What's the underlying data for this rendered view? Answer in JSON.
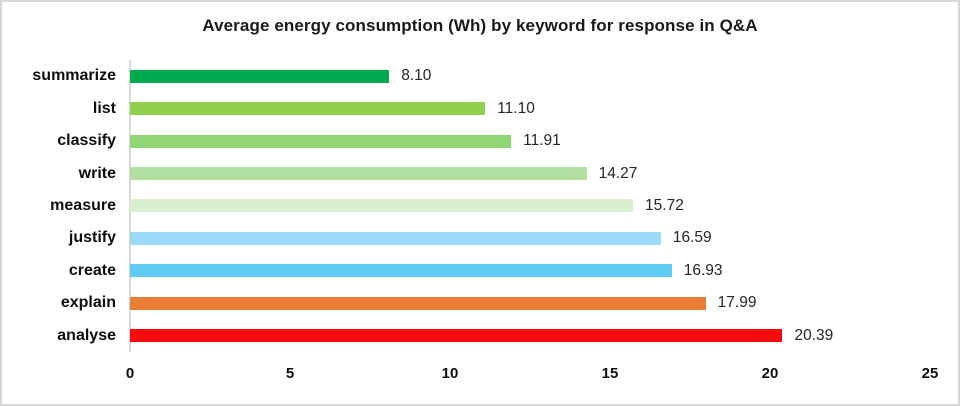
{
  "title": "Average energy consumption (Wh) by keyword for response in Q&A",
  "colors": {
    "frame_border": "#D6D6D6",
    "axis_line": "#D9D9D9",
    "title_text": "#1A1A1A",
    "category_text": "#0D0D0D",
    "value_text": "#262626"
  },
  "chart_data": {
    "type": "bar",
    "orientation": "horizontal",
    "title": "Average energy consumption (Wh) by keyword for response in Q&A",
    "categories": [
      "summarize",
      "list",
      "classify",
      "write",
      "measure",
      "justify",
      "create",
      "explain",
      "analyse"
    ],
    "values": [
      8.1,
      11.1,
      11.91,
      14.27,
      15.72,
      16.59,
      16.93,
      17.99,
      20.39
    ],
    "value_labels": [
      "8.10",
      "11.10",
      "11.91",
      "14.27",
      "15.72",
      "16.59",
      "16.93",
      "17.99",
      "20.39"
    ],
    "bar_colors": [
      "#00AB4F",
      "#8FD04F",
      "#90D675",
      "#B2E0A0",
      "#D9F0CE",
      "#9CDBF8",
      "#5FCBF2",
      "#E87D34",
      "#FA0A0A"
    ],
    "xlabel": "",
    "ylabel": "",
    "xlim": [
      0,
      25
    ],
    "x_ticks": [
      0,
      5,
      10,
      15,
      20,
      25
    ],
    "grid": false,
    "legend": false
  }
}
